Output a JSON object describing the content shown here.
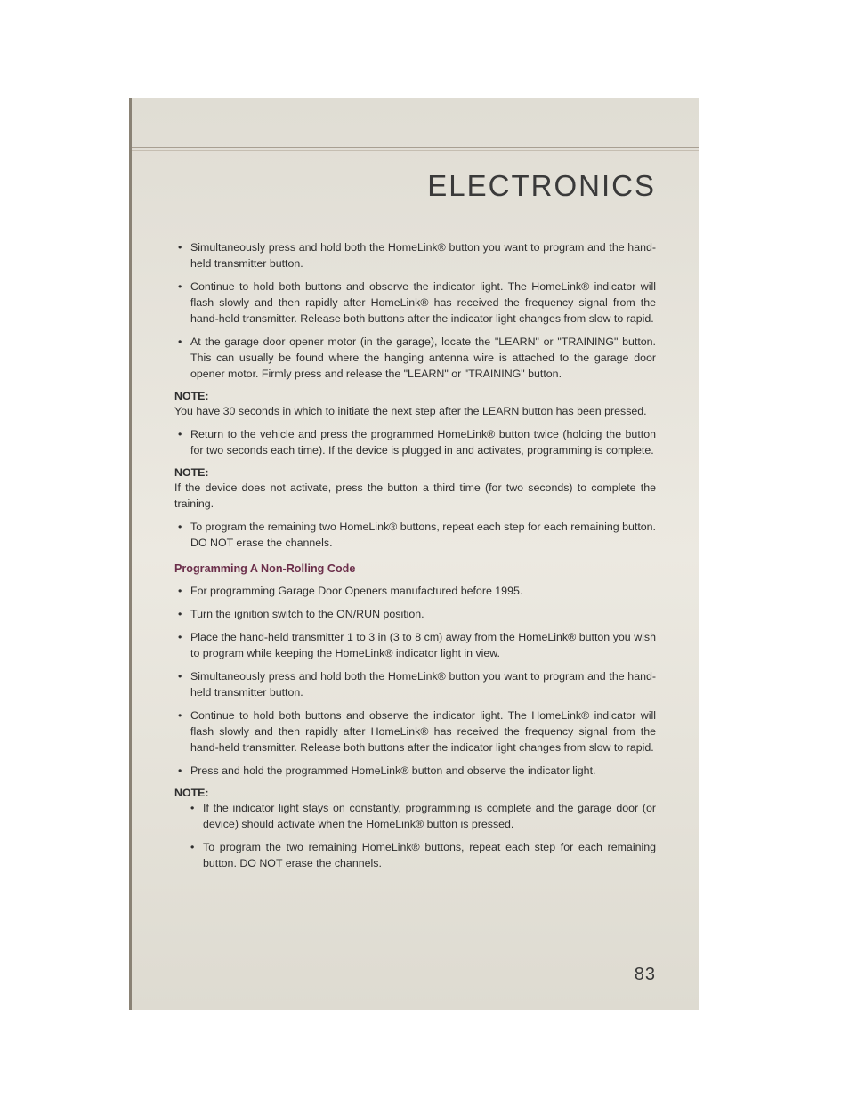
{
  "title": "ELECTRONICS",
  "blocks": [
    {
      "type": "ul",
      "items": [
        "Simultaneously press and hold both the HomeLink® button you want to program and the hand-held transmitter button.",
        "Continue to hold both buttons and observe the indicator light. The HomeLink® indicator will flash slowly and then rapidly after HomeLink® has received the frequency signal from the hand-held transmitter. Release both buttons after the indicator light changes from slow to rapid.",
        "At the garage door opener motor (in the garage), locate the \"LEARN\" or \"TRAINING\" button. This can usually be found where the hanging antenna wire is attached to the garage door opener motor. Firmly press and release the \"LEARN\" or \"TRAINING\" button."
      ]
    },
    {
      "type": "note",
      "label": "NOTE:",
      "text": "You have 30 seconds in which to initiate the next step after the LEARN button has been pressed."
    },
    {
      "type": "ul",
      "items": [
        "Return to the vehicle and press the programmed HomeLink® button twice (holding the button for two seconds each time). If the device is plugged in and activates, programming is complete."
      ]
    },
    {
      "type": "note",
      "label": "NOTE:",
      "text": "If the device does not activate, press the button a third time (for two seconds) to complete the training."
    },
    {
      "type": "ul",
      "items": [
        "To program the remaining two HomeLink® buttons, repeat each step for each remaining button. DO NOT erase the channels."
      ]
    },
    {
      "type": "subhead",
      "text": "Programming A Non-Rolling Code"
    },
    {
      "type": "ul",
      "items": [
        "For programming Garage Door Openers manufactured before 1995.",
        "Turn the ignition switch to the ON/RUN position.",
        "Place the hand-held transmitter 1 to 3 in (3 to 8 cm) away from the HomeLink® button you wish to program while keeping the HomeLink® indicator light in view.",
        "Simultaneously press and hold both the HomeLink® button you want to program and the hand-held transmitter button.",
        "Continue to hold both buttons and observe the indicator light. The HomeLink® indicator will flash slowly and then rapidly after HomeLink® has received the frequency signal from the hand-held transmitter. Release both buttons after the indicator light changes from slow to rapid.",
        "Press and hold the programmed HomeLink® button and observe the indicator light."
      ]
    },
    {
      "type": "note",
      "label": "NOTE:",
      "text": ""
    },
    {
      "type": "ul-inset",
      "items": [
        "If the indicator light stays on constantly, programming is complete and the garage door (or device) should activate when the HomeLink® button is pressed.",
        "To program the two remaining HomeLink® buttons, repeat each step for each remaining button. DO NOT erase the channels."
      ]
    }
  ],
  "pageNumber": "83",
  "colors": {
    "subhead": "#6b2e4a",
    "bg_top": "#e0ddd4",
    "bg_bottom": "#dedbd1",
    "border": "#8a8275",
    "text": "#2e2e2e"
  }
}
